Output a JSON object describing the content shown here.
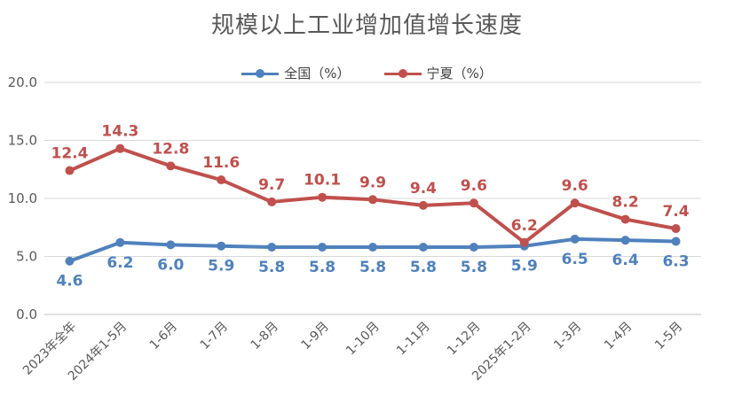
{
  "chart_data": {
    "type": "line",
    "title": "规模以上工业增加值增长速度",
    "categories": [
      "2023年全年",
      "2024年1-5月",
      "1-6月",
      "1-7月",
      "1-8月",
      "1-9月",
      "1-10月",
      "1-11月",
      "1-12月",
      "2025年1-2月",
      "1-3月",
      "1-4月",
      "1-5月"
    ],
    "series": [
      {
        "name": "全国（%）",
        "color": "#4f81bd",
        "values": [
          4.6,
          6.2,
          6.0,
          5.9,
          5.8,
          5.8,
          5.8,
          5.8,
          5.8,
          5.9,
          6.5,
          6.4,
          6.3
        ],
        "labels": [
          "4.6",
          "6.2",
          "6.0",
          "5.9",
          "5.8",
          "5.8",
          "5.8",
          "5.8",
          "5.8",
          "5.9",
          "6.5",
          "6.4",
          "6.3"
        ]
      },
      {
        "name": "宁夏（%）",
        "color": "#c0504d",
        "values": [
          12.4,
          14.3,
          12.8,
          11.6,
          9.7,
          10.1,
          9.9,
          9.4,
          9.6,
          6.2,
          9.6,
          8.2,
          7.4
        ],
        "labels": [
          "12.4",
          "14.3",
          "12.8",
          "11.6",
          "9.7",
          "10.1",
          "9.9",
          "9.4",
          "9.6",
          "6.2",
          "9.6",
          "8.2",
          "7.4"
        ]
      }
    ],
    "ylim": [
      0,
      20
    ],
    "yticks": [
      "0.0",
      "5.0",
      "10.0",
      "15.0",
      "20.0"
    ],
    "xlabel": "",
    "ylabel": "",
    "grid": true,
    "legend_position": "top-center"
  }
}
